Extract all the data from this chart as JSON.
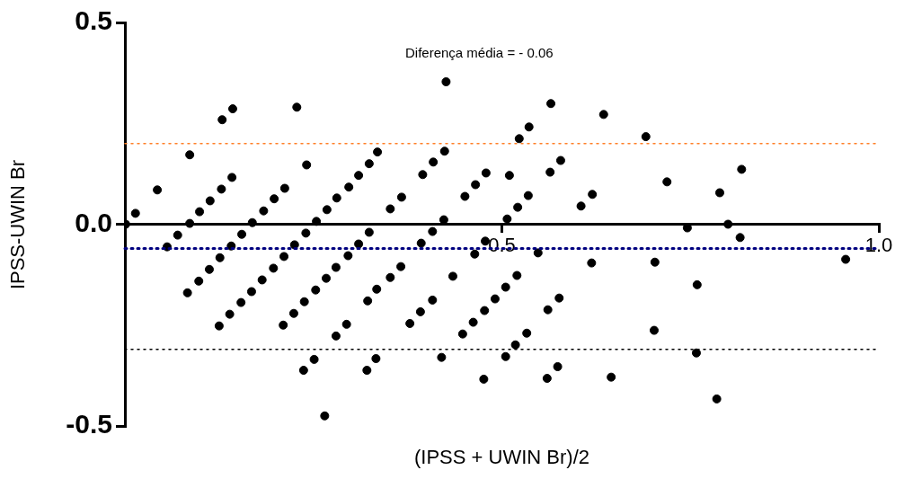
{
  "chart_data": {
    "type": "scatter",
    "xlabel": "(IPSS + UWIN Br)/2",
    "ylabel": "IPSS-UWIN Br",
    "annotations": [
      "Diferença média = - 0.06"
    ],
    "color": "#000000",
    "marker": "circle",
    "grid": false,
    "legend": false,
    "xlim": [
      0,
      1.0
    ],
    "xticks": [
      0.5,
      {
        "value": 1.0,
        "label": "1.0"
      }
    ],
    "ylim": [
      -0.5,
      0.5
    ],
    "yticks": [
      -0.5,
      {
        "value": 0,
        "label": "0.0"
      },
      0.5
    ],
    "ref_lines": [
      {
        "axis": "y",
        "value": 0.2,
        "color": "#ff7f27",
        "line_style": "dotted"
      },
      {
        "axis": "y",
        "value": -0.06,
        "color": "#000080",
        "line_style": "dotted"
      },
      {
        "axis": "y",
        "value": -0.31,
        "color": "#000000",
        "line_style": "dotted"
      }
    ],
    "x": [
      0.014,
      0.043,
      0.086,
      0.129,
      0.143,
      0.228,
      0.241,
      0.142,
      0.128,
      0.113,
      0.099,
      0.086,
      0.07,
      0.056,
      0.212,
      0.198,
      0.184,
      0.169,
      0.155,
      0.141,
      0.126,
      0.112,
      0.098,
      0.083,
      0.335,
      0.324,
      0.31,
      0.297,
      0.281,
      0.268,
      0.254,
      0.24,
      0.225,
      0.211,
      0.197,
      0.182,
      0.168,
      0.154,
      0.139,
      0.125,
      0.324,
      0.31,
      0.296,
      0.28,
      0.267,
      0.253,
      0.238,
      0.224,
      0.21,
      0.334,
      0.322,
      0.294,
      0.28,
      0.251,
      0.237,
      0.265,
      0.333,
      0.321,
      0.001,
      0.426,
      0.565,
      0.635,
      0.536,
      0.523,
      0.424,
      0.409,
      0.395,
      0.479,
      0.465,
      0.451,
      0.51,
      0.578,
      0.564,
      0.535,
      0.521,
      0.507,
      0.62,
      0.605,
      0.367,
      0.352,
      0.423,
      0.408,
      0.393,
      0.478,
      0.464,
      0.548,
      0.619,
      0.435,
      0.366,
      0.352,
      0.408,
      0.392,
      0.378,
      0.52,
      0.505,
      0.491,
      0.477,
      0.462,
      0.448,
      0.576,
      0.561,
      0.533,
      0.518,
      0.505,
      0.42,
      0.476,
      0.574,
      0.56,
      0.645,
      0.691,
      0.719,
      0.818,
      0.789,
      0.746,
      0.8,
      0.816,
      0.703,
      0.956,
      0.759,
      0.702,
      0.758,
      0.785
    ],
    "values": [
      0.027,
      0.085,
      0.172,
      0.259,
      0.286,
      0.29,
      0.147,
      0.116,
      0.087,
      0.058,
      0.031,
      0.002,
      -0.027,
      -0.056,
      0.089,
      0.063,
      0.033,
      0.004,
      -0.025,
      -0.054,
      -0.083,
      -0.112,
      -0.141,
      -0.17,
      0.179,
      0.15,
      0.121,
      0.092,
      0.065,
      0.036,
      0.007,
      -0.022,
      -0.051,
      -0.08,
      -0.109,
      -0.138,
      -0.167,
      -0.194,
      -0.223,
      -0.252,
      -0.02,
      -0.049,
      -0.078,
      -0.107,
      -0.134,
      -0.163,
      -0.192,
      -0.221,
      -0.25,
      -0.161,
      -0.19,
      -0.248,
      -0.277,
      -0.335,
      -0.362,
      -0.475,
      -0.333,
      -0.362,
      0.0,
      0.353,
      0.299,
      0.272,
      0.241,
      0.212,
      0.181,
      0.154,
      0.123,
      0.127,
      0.098,
      0.069,
      0.121,
      0.158,
      0.129,
      0.071,
      0.042,
      0.013,
      0.074,
      0.045,
      0.067,
      0.038,
      0.011,
      -0.018,
      -0.047,
      -0.042,
      -0.074,
      -0.071,
      -0.096,
      -0.129,
      -0.105,
      -0.132,
      -0.188,
      -0.217,
      -0.246,
      -0.127,
      -0.156,
      -0.185,
      -0.214,
      -0.243,
      -0.272,
      -0.183,
      -0.212,
      -0.27,
      -0.299,
      -0.328,
      -0.33,
      -0.384,
      -0.353,
      -0.382,
      -0.379,
      0.217,
      0.105,
      0.136,
      0.078,
      -0.009,
      0.0,
      -0.033,
      -0.094,
      -0.087,
      -0.15,
      -0.263,
      -0.319,
      -0.433
    ]
  }
}
